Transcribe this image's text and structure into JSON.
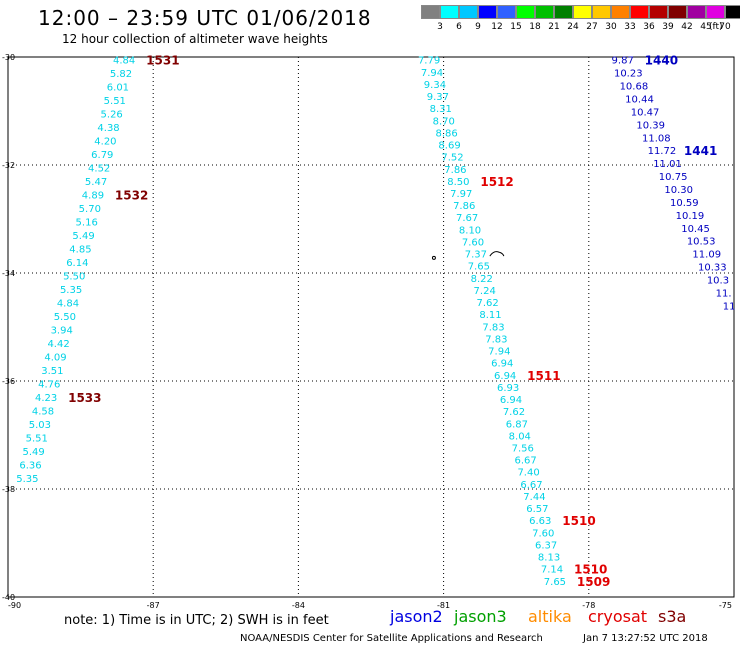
{
  "title": "12:00 – 23:59 UTC 01/06/2018",
  "subtitle": "12 hour collection of altimeter wave heights",
  "colorbar": {
    "labels": [
      "3",
      "6",
      "9",
      "12",
      "15",
      "18",
      "21",
      "24",
      "27",
      "30",
      "33",
      "36",
      "39",
      "42",
      "45",
      "70"
    ],
    "unit": "(ft)",
    "colors": [
      "#808080",
      "#00ffff",
      "#00c8ff",
      "#0000ff",
      "#3060ff",
      "#00ff00",
      "#00c000",
      "#008000",
      "#ffff00",
      "#ffc800",
      "#ff8000",
      "#ff0000",
      "#b40000",
      "#800000",
      "#a000a0",
      "#e000e0",
      "#000000"
    ]
  },
  "map": {
    "lon_range": [
      -90,
      -75
    ],
    "lat_range": [
      -40,
      -30
    ],
    "lon_labels": [
      "-90",
      "-87",
      "-84",
      "-81",
      "-78",
      "-75"
    ],
    "lat_labels": [
      "-30",
      "-32",
      "-34",
      "-36",
      "-38",
      "-40"
    ],
    "island": "small island near -79.9, -33.6"
  },
  "tracks": [
    {
      "color": "#00d2e6",
      "values": [
        "4.84",
        "5.82",
        "6.01",
        "5.51",
        "5.26",
        "4.38",
        "4.20",
        "6.79",
        "4.52",
        "5.47",
        "4.89",
        "5.70",
        "5.16",
        "5.49",
        "4.85",
        "6.14",
        "5.50",
        "5.35",
        "4.84",
        "5.50",
        "3.94",
        "4.42",
        "4.09",
        "3.51",
        "4.76",
        "4.23",
        "4.58",
        "5.03",
        "5.51",
        "5.49",
        "6.36",
        "5.35"
      ],
      "start": [
        -87.6,
        -30.05
      ],
      "end": [
        -89.6,
        -37.8
      ],
      "time_labels": [
        {
          "text": "1531",
          "index": 0,
          "color": "#800000"
        },
        {
          "text": "1532",
          "index": 10,
          "color": "#800000"
        },
        {
          "text": "1533",
          "index": 25,
          "color": "#800000"
        }
      ]
    },
    {
      "color": "#00d2e6",
      "values": [
        "7.79",
        "7.94",
        "9.34",
        "9.37",
        "8.31",
        "8.70",
        "8.86",
        "8.69",
        "7.52",
        "7.86",
        "8.50",
        "7.97",
        "7.86",
        "7.67",
        "8.10",
        "7.60",
        "7.37",
        "7.65",
        "8.22",
        "7.24",
        "7.62",
        "8.11",
        "7.83",
        "7.83",
        "7.94",
        "6.94",
        "6.94",
        "6.93",
        "6.94",
        "7.62",
        "6.87",
        "8.04",
        "7.56",
        "6.67",
        "7.40",
        "6.67",
        "7.44",
        "6.57",
        "6.63",
        "7.60",
        "6.37",
        "8.13",
        "7.14",
        "7.65"
      ],
      "start": [
        -81.3,
        -30.05
      ],
      "end": [
        -78.7,
        -39.7
      ],
      "time_labels": [
        {
          "text": "1512",
          "index": 10,
          "color": "#e00000"
        },
        {
          "text": "1511",
          "index": 26,
          "color": "#e00000"
        },
        {
          "text": "1510",
          "index": 38,
          "color": "#e00000"
        },
        {
          "text": "1510",
          "index": 42,
          "color": "#e00000"
        },
        {
          "text": "1509",
          "index": 43,
          "color": "#e00000"
        }
      ]
    },
    {
      "color": "#0000c0",
      "values": [
        "9.87",
        "10.23",
        "10.68",
        "10.44",
        "10.47",
        "10.39",
        "11.08",
        "11.72",
        "11.01",
        "10.75",
        "10.30",
        "10.59",
        "10.19",
        "10.45",
        "10.53",
        "11.09",
        "10.33",
        "10.3",
        "11.",
        "11"
      ],
      "start": [
        -77.3,
        -30.05
      ],
      "end": [
        -75.1,
        -34.6
      ],
      "time_labels": [
        {
          "text": "1440",
          "index": 0,
          "color": "#0000c0"
        },
        {
          "text": "1441",
          "index": 7,
          "color": "#0000c0"
        }
      ]
    }
  ],
  "footer": {
    "note": "note:  1) Time is in UTC;  2) SWH is in feet",
    "missions": [
      {
        "name": "jason2",
        "color": "#0000e0"
      },
      {
        "name": "jason3",
        "color": "#00a000"
      },
      {
        "name": "altika",
        "color": "#ff8c00"
      },
      {
        "name": "cryosat",
        "color": "#e00000"
      },
      {
        "name": "s3a",
        "color": "#800000"
      }
    ],
    "credit": "NOAA/NESDIS Center for Satellite Applications and Research",
    "generated": "Jan  7 13:27:52 UTC 2018"
  }
}
